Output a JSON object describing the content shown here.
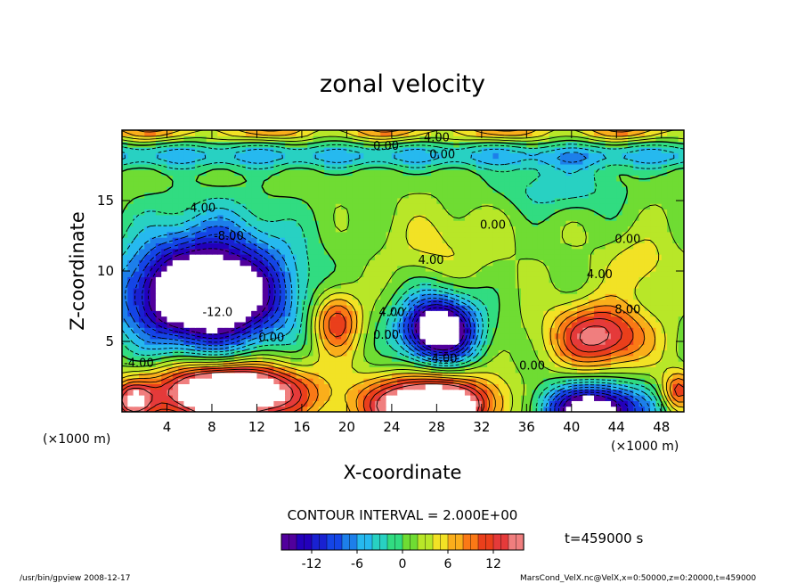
{
  "chart_data": {
    "type": "heatmap",
    "title": "zonal velocity",
    "xlabel": "X-coordinate",
    "ylabel": "Z-coordinate",
    "x_unit_note": "(×1000 m)",
    "y_unit_note": "(×1000 m)",
    "xlim": [
      0,
      50
    ],
    "ylim": [
      0,
      20
    ],
    "x_ticks": [
      4,
      8,
      12,
      16,
      20,
      24,
      28,
      32,
      36,
      40,
      44,
      48
    ],
    "y_ticks": [
      5,
      10,
      15
    ],
    "contour_interval_text": "CONTOUR INTERVAL = 2.000E+00",
    "contour_interval": 2.0,
    "color_range": [
      -16,
      16
    ],
    "colorbar_ticks": [
      -12,
      -6,
      0,
      6,
      12
    ],
    "time_label": "t=459000 s",
    "contour_labels": [
      {
        "text": "4.00",
        "x": 28.0,
        "y": 19.2
      },
      {
        "text": "0.00",
        "x": 23.5,
        "y": 18.6
      },
      {
        "text": "0.00",
        "x": 28.5,
        "y": 18.0
      },
      {
        "text": "-4.00",
        "x": 7.0,
        "y": 14.2
      },
      {
        "text": "-8.00",
        "x": 9.5,
        "y": 12.2
      },
      {
        "text": "-12.0",
        "x": 8.5,
        "y": 6.8
      },
      {
        "text": "0.00",
        "x": 13.3,
        "y": 5.0
      },
      {
        "text": "-4.00",
        "x": 1.5,
        "y": 3.2
      },
      {
        "text": "4.00",
        "x": 24.0,
        "y": 6.8
      },
      {
        "text": "0.00",
        "x": 23.5,
        "y": 5.2
      },
      {
        "text": "-4.00",
        "x": 28.5,
        "y": 3.5
      },
      {
        "text": "4.00",
        "x": 27.5,
        "y": 10.5
      },
      {
        "text": "0.00",
        "x": 33.0,
        "y": 13.0
      },
      {
        "text": "0.00",
        "x": 45.0,
        "y": 12.0
      },
      {
        "text": "4.00",
        "x": 42.5,
        "y": 9.5
      },
      {
        "text": "8.00",
        "x": 45.0,
        "y": 7.0
      },
      {
        "text": "0.00",
        "x": 36.5,
        "y": 3.0
      }
    ],
    "vortices": [
      {
        "x": 7.5,
        "y": 8.3,
        "rx": 7.0,
        "ry": 3.6,
        "amp": -28
      },
      {
        "x": 28.2,
        "y": 5.9,
        "rx": 3.3,
        "ry": 2.3,
        "amp": -24
      },
      {
        "x": 42.5,
        "y": 5.4,
        "rx": 4.2,
        "ry": 2.3,
        "amp": 14
      },
      {
        "x": 19.0,
        "y": 6.5,
        "rx": 2.2,
        "ry": 2.3,
        "amp": 11
      },
      {
        "x": 9.5,
        "y": 1.4,
        "rx": 6.5,
        "ry": 2.0,
        "amp": 26
      },
      {
        "x": 27.5,
        "y": 0.5,
        "rx": 5.5,
        "ry": 2.0,
        "amp": 24
      },
      {
        "x": 42.0,
        "y": 0.2,
        "rx": 4.5,
        "ry": 1.8,
        "amp": -22
      },
      {
        "x": 0.8,
        "y": 0.8,
        "rx": 1.8,
        "ry": 1.4,
        "amp": 12
      },
      {
        "x": 49.5,
        "y": 1.5,
        "rx": 1.5,
        "ry": 1.4,
        "amp": 10
      },
      {
        "x": 39.0,
        "y": 16.0,
        "rx": 5.5,
        "ry": 1.8,
        "amp": -5
      },
      {
        "x": 28.5,
        "y": 12.0,
        "rx": 5.0,
        "ry": 2.5,
        "amp": 3
      },
      {
        "x": 8.5,
        "y": 13.0,
        "rx": 7.0,
        "ry": 3.0,
        "amp": -4
      },
      {
        "x": 46.0,
        "y": 10.5,
        "rx": 3.0,
        "ry": 2.0,
        "amp": 4
      }
    ],
    "top_band": {
      "y_center": 18.2,
      "width": 0.9,
      "amp": -6,
      "surface_amp": 6
    }
  },
  "footer": {
    "left": "/usr/bin/gpview   2008-12-17",
    "right": "MarsCond_VelX.nc@VelX,x=0:50000,z=0:20000,t=459000"
  }
}
